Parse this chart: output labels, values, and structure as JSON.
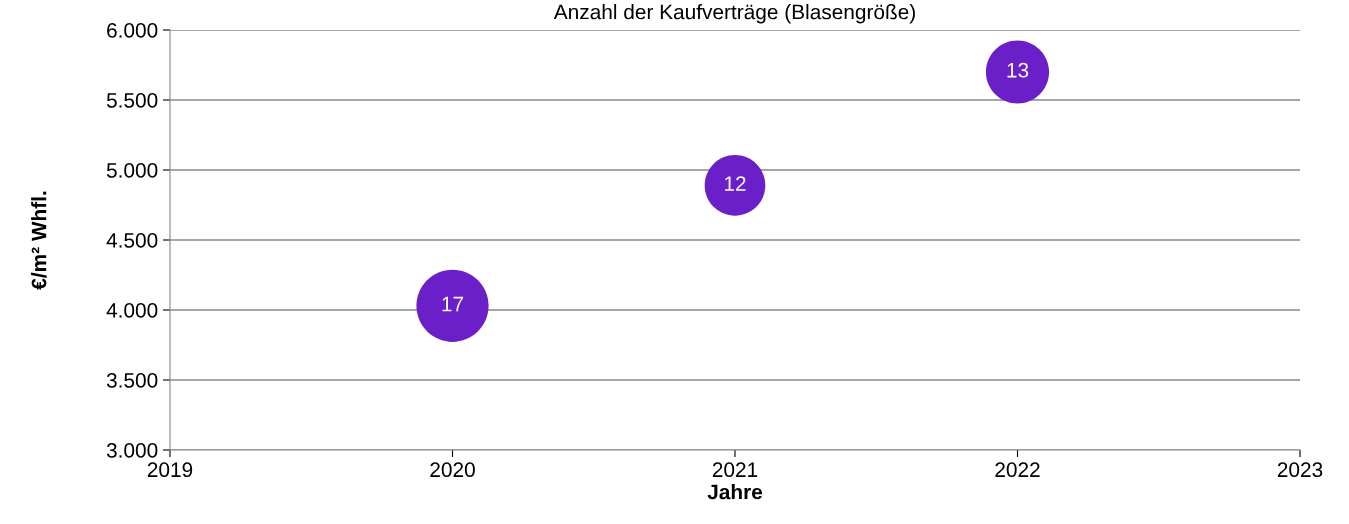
{
  "chart_data": {
    "type": "bubble",
    "title": "Anzahl der Kaufverträge (Blasengröße)",
    "xlabel": "Jahre",
    "ylabel": "€/m² Whfl.",
    "x": [
      2020,
      2021,
      2022
    ],
    "series": [
      {
        "color": "#6a1fc8",
        "values": [
          4030,
          4890,
          5700
        ],
        "sizes": [
          17,
          12,
          13
        ],
        "value_labels": [
          "17",
          "12",
          "13"
        ]
      }
    ],
    "xlim": [
      2019,
      2023
    ],
    "xticks": [
      2019,
      2020,
      2021,
      2022,
      2023
    ],
    "ylim": [
      3000,
      6000
    ],
    "yticks": [
      {
        "value": 3000,
        "label": "3.000"
      },
      {
        "value": 3500,
        "label": "3.500"
      },
      {
        "value": 4000,
        "label": "4.000"
      },
      {
        "value": 4500,
        "label": "4.500"
      },
      {
        "value": 5000,
        "label": "5.000"
      },
      {
        "value": 5500,
        "label": "5.500"
      },
      {
        "value": 6000,
        "label": "6.000"
      }
    ],
    "grid": "y",
    "legend": false
  }
}
